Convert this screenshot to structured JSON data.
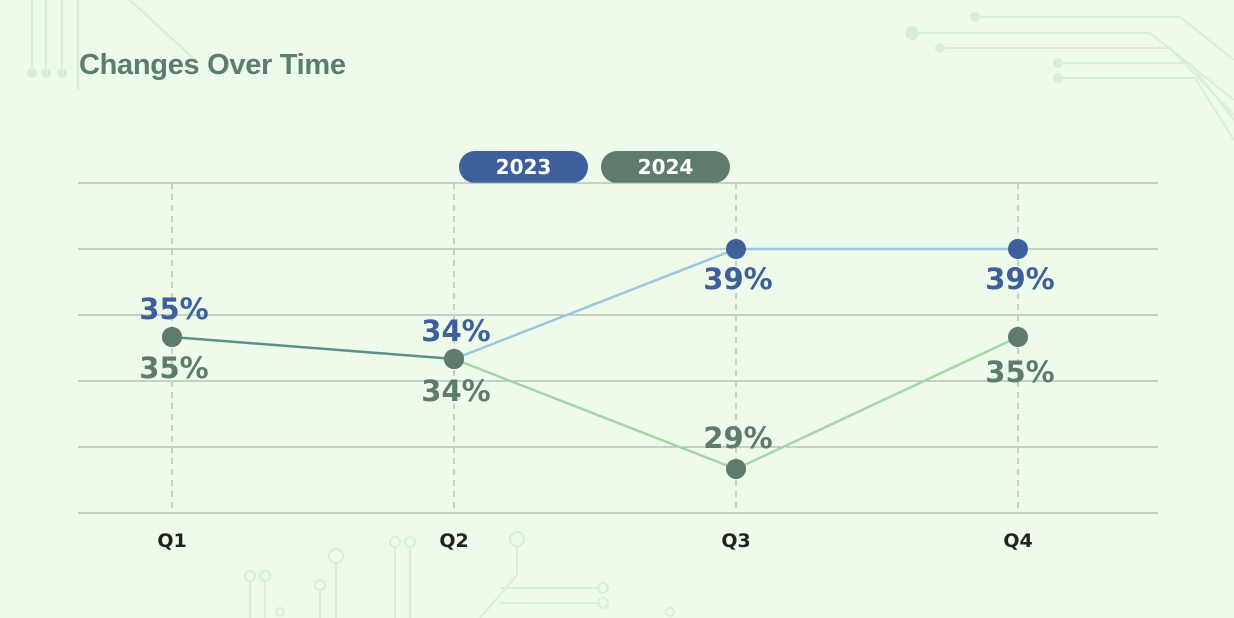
{
  "colors": {
    "background": "#eefbea",
    "title": "#5b7d6d",
    "series_2023_point": "#3d5f9b",
    "series_2023_line": "#9cc7e0",
    "series_2024_point": "#5e7b6d",
    "series_2024_line": "#a9d3a8",
    "q1_q2_line": "#5b8f8a",
    "label_2023": "#3d5f9b",
    "label_2024": "#5e7b6d",
    "gridline": "#9aa89a",
    "vertical_dashed": "#c9cfc6",
    "axis_label": "#222222"
  },
  "chart_data": {
    "type": "line",
    "title": "Changes Over Time",
    "categories": [
      "Q1",
      "Q2",
      "Q3",
      "Q4"
    ],
    "series": [
      {
        "name": "2023",
        "values": [
          35,
          34,
          39,
          39
        ],
        "labels": [
          "35%",
          "34%",
          "39%",
          "39%"
        ]
      },
      {
        "name": "2024",
        "values": [
          35,
          34,
          29,
          35
        ],
        "labels": [
          "35%",
          "34%",
          "29%",
          "35%"
        ]
      }
    ],
    "ylim": [
      27,
      42
    ],
    "grid": true,
    "legend_position": "top-center"
  }
}
